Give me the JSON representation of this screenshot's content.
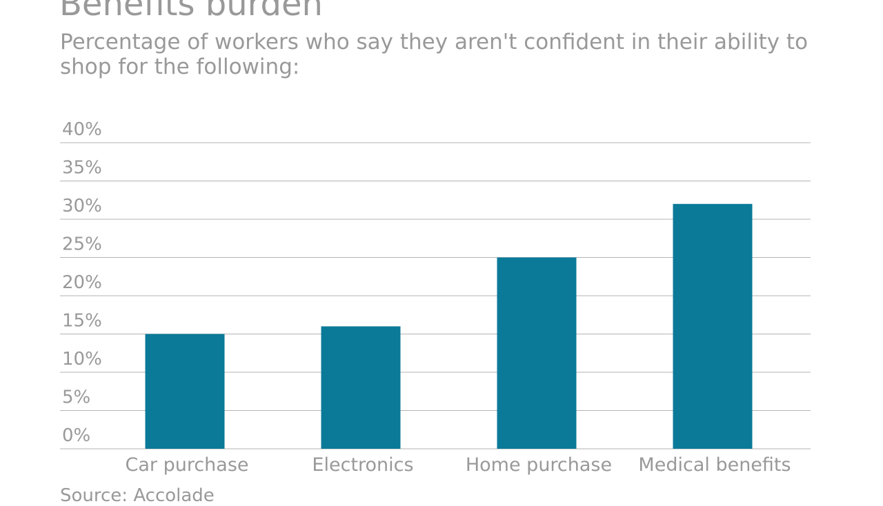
{
  "title": "Benefits burden",
  "subtitle": "Percentage of workers who say they aren't confident in their ability to shop for the following:",
  "source": "Source: Accolade",
  "chart_data": {
    "type": "bar",
    "title": "Benefits burden",
    "subtitle": "Percentage of workers who say they aren't confident in their ability to shop for the following:",
    "categories": [
      "Car purchase",
      "Electronics",
      "Home purchase",
      "Medical benefits"
    ],
    "values": [
      15,
      16,
      25,
      32
    ],
    "ylim": [
      0,
      40
    ],
    "yticks": [
      0,
      5,
      10,
      15,
      20,
      25,
      30,
      35,
      40
    ],
    "ytick_labels": [
      "0%",
      "5%",
      "10%",
      "15%",
      "20%",
      "25%",
      "30%",
      "35%",
      "40%"
    ],
    "grid": true,
    "bar_color": "#0b7a99",
    "grid_color": "#b3b3b3",
    "text_color": "#999999"
  }
}
